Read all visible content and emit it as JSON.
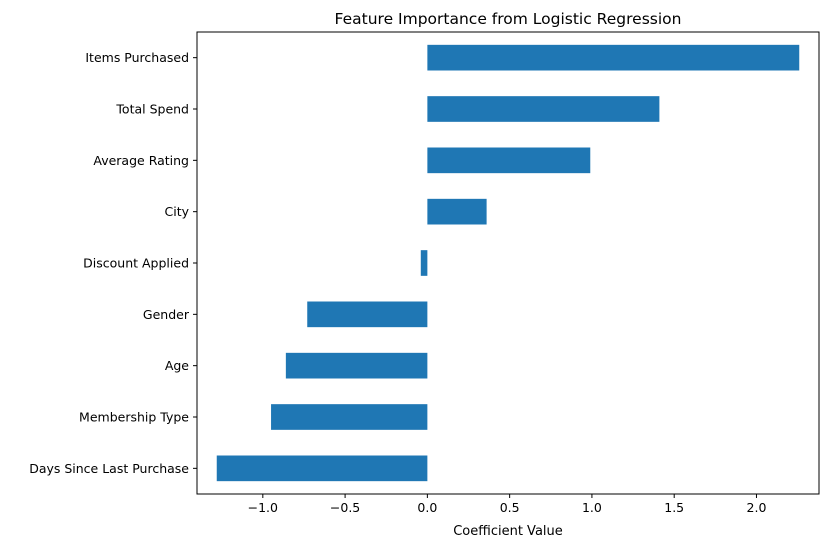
{
  "chart_data": {
    "type": "bar",
    "orientation": "horizontal",
    "title": "Feature Importance from Logistic Regression",
    "xlabel": "Coefficient Value",
    "ylabel": "",
    "categories": [
      "Days Since Last Purchase",
      "Membership Type",
      "Age",
      "Gender",
      "Discount Applied",
      "City",
      "Average Rating",
      "Total Spend",
      "Items Purchased"
    ],
    "values": [
      -1.28,
      -0.95,
      -0.86,
      -0.73,
      -0.04,
      0.36,
      0.99,
      1.41,
      2.26
    ],
    "xlim": [
      -1.4,
      2.38
    ],
    "xticks": [
      -1.0,
      -0.5,
      0.0,
      0.5,
      1.0,
      1.5,
      2.0
    ],
    "xtick_labels": [
      "−1.0",
      "−0.5",
      "0.0",
      "0.5",
      "1.0",
      "1.5",
      "2.0"
    ],
    "bar_color": "#1f77b4",
    "grid": false,
    "legend": "none"
  }
}
